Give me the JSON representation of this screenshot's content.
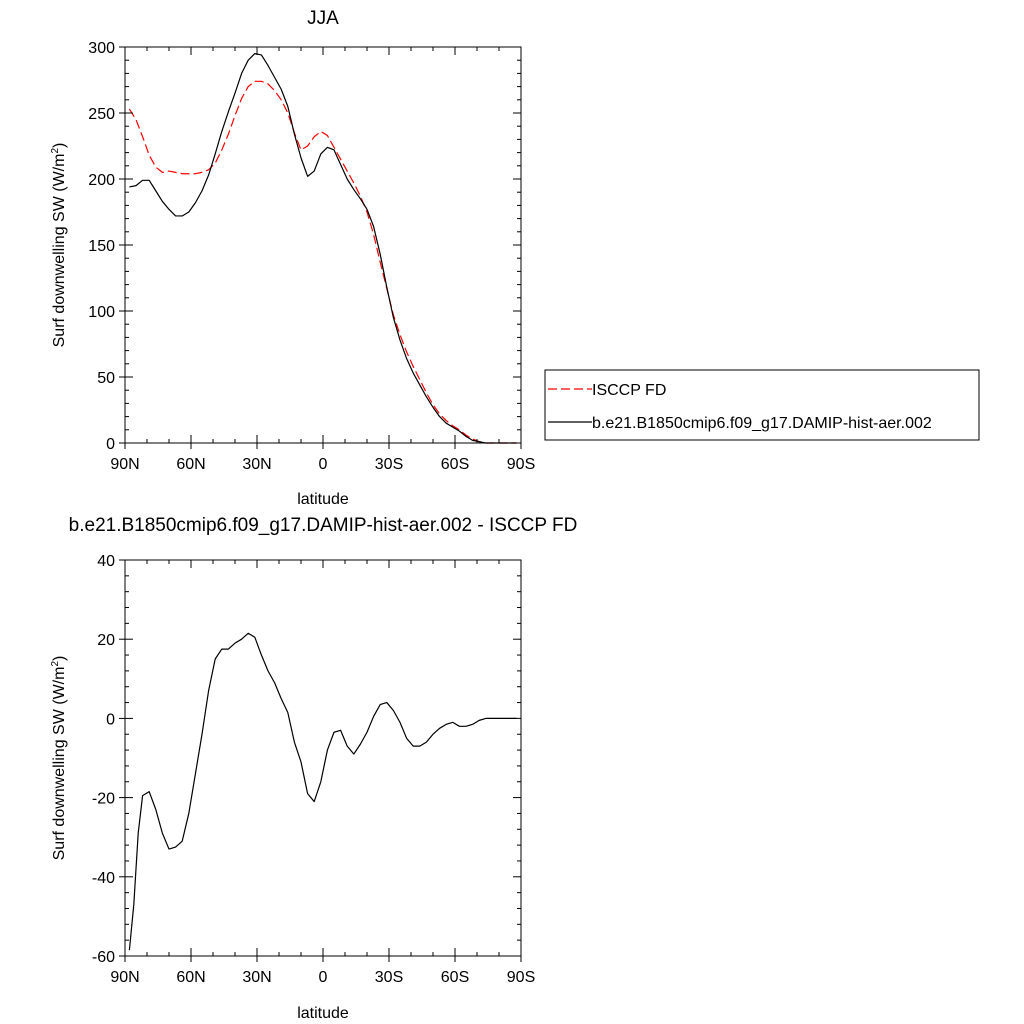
{
  "chart_data": [
    {
      "type": "line",
      "title": "JJA",
      "xlabel": "latitude",
      "ylabel_main": "Surf downwelling SW (W/m",
      "ylabel_sup": "2",
      "ylabel_close": ")",
      "xlim": [
        90,
        -90
      ],
      "ylim": [
        0,
        300
      ],
      "xticks": [
        90,
        60,
        30,
        0,
        -30,
        -60,
        -90
      ],
      "xtick_labels": [
        "90N",
        "60N",
        "30N",
        "0",
        "30S",
        "60S",
        "90S"
      ],
      "yticks": [
        0,
        50,
        100,
        150,
        200,
        250,
        300
      ],
      "ytick_labels": [
        "0",
        "50",
        "100",
        "150",
        "200",
        "250",
        "300"
      ],
      "grid": false,
      "legend_position": "right",
      "series": [
        {
          "name": "ISCCP FD",
          "color": "#ff0000",
          "style": "dashed",
          "x": [
            88,
            85,
            82,
            79,
            76,
            73,
            70,
            67,
            64,
            61,
            58,
            55,
            52,
            49,
            46,
            43,
            40,
            37,
            34,
            31,
            28,
            25,
            22,
            19,
            16,
            13,
            10,
            7,
            4,
            1,
            -2,
            -5,
            -8,
            -11,
            -14,
            -17,
            -20,
            -23,
            -26,
            -29,
            -32,
            -35,
            -38,
            -41,
            -44,
            -47,
            -50,
            -53,
            -56,
            -59,
            -62,
            -65,
            -68,
            -71,
            -74,
            -77,
            -80,
            -83,
            -86,
            -88
          ],
          "y": [
            253,
            245,
            232,
            218,
            209,
            205,
            206,
            205,
            204,
            204,
            204,
            205,
            207,
            212,
            222,
            234,
            248,
            261,
            270,
            274,
            274,
            272,
            267,
            260,
            250,
            235,
            222,
            225,
            232,
            236,
            233,
            224,
            215,
            206,
            197,
            187,
            175,
            158,
            137,
            117,
            97,
            82,
            69,
            58,
            48,
            38,
            29,
            22,
            17,
            13,
            10,
            6,
            3,
            1,
            0,
            0,
            0,
            0,
            0,
            0
          ]
        },
        {
          "name": "b.e21.B1850cmip6.f09_g17.DAMIP-hist-aer.002",
          "color": "#000000",
          "style": "solid",
          "x": [
            88,
            85,
            82,
            79,
            76,
            73,
            70,
            67,
            64,
            61,
            58,
            55,
            52,
            49,
            46,
            43,
            40,
            37,
            34,
            31,
            28,
            25,
            22,
            19,
            16,
            13,
            10,
            7,
            4,
            1,
            -2,
            -5,
            -8,
            -11,
            -14,
            -17,
            -20,
            -23,
            -26,
            -29,
            -32,
            -35,
            -38,
            -41,
            -44,
            -47,
            -50,
            -53,
            -56,
            -59,
            -62,
            -65,
            -68,
            -71,
            -74,
            -77,
            -80,
            -83,
            -86,
            -88
          ],
          "y": [
            194,
            195,
            199,
            199,
            191,
            183,
            177,
            172,
            172,
            175,
            182,
            191,
            203,
            219,
            236,
            251,
            265,
            280,
            290,
            295,
            294,
            286,
            277,
            268,
            255,
            234,
            216,
            202,
            206,
            219,
            224,
            222,
            211,
            200,
            192,
            185,
            177,
            164,
            143,
            118,
            95,
            78,
            64,
            53,
            44,
            35,
            27,
            20,
            15,
            12,
            9,
            5,
            2,
            1,
            0,
            0,
            0,
            0,
            0,
            0
          ]
        }
      ]
    },
    {
      "type": "line",
      "title": "b.e21.B1850cmip6.f09_g17.DAMIP-hist-aer.002 - ISCCP FD",
      "xlabel": "latitude",
      "ylabel_main": "Surf downwelling SW (W/m",
      "ylabel_sup": "2",
      "ylabel_close": ")",
      "xlim": [
        90,
        -90
      ],
      "ylim": [
        -60,
        40
      ],
      "xticks": [
        90,
        60,
        30,
        0,
        -30,
        -60,
        -90
      ],
      "xtick_labels": [
        "90N",
        "60N",
        "30N",
        "0",
        "30S",
        "60S",
        "90S"
      ],
      "yticks": [
        -60,
        -40,
        -20,
        0,
        20,
        40
      ],
      "ytick_labels": [
        "-60",
        "-40",
        "-20",
        "0",
        "20",
        "40"
      ],
      "grid": false,
      "series": [
        {
          "color": "#000000",
          "style": "solid",
          "x": [
            88,
            86,
            84,
            82,
            79,
            76,
            73,
            70,
            67,
            64,
            61,
            58,
            55,
            52,
            49,
            46,
            43,
            40,
            37,
            34,
            31,
            28,
            25,
            22,
            19,
            16,
            13,
            10,
            7,
            4,
            1,
            -2,
            -5,
            -8,
            -11,
            -14,
            -17,
            -20,
            -23,
            -26,
            -29,
            -32,
            -35,
            -38,
            -41,
            -44,
            -47,
            -50,
            -53,
            -56,
            -59,
            -62,
            -65,
            -68,
            -71,
            -74,
            -77,
            -80,
            -83,
            -86,
            -88
          ],
          "y": [
            -58.5,
            -47,
            -29,
            -19.5,
            -18.5,
            -23,
            -29,
            -33,
            -32.5,
            -31,
            -24,
            -14,
            -4,
            7,
            15,
            17.5,
            17.5,
            19,
            20,
            21.5,
            20.5,
            16,
            12,
            9,
            5,
            1.5,
            -6,
            -11,
            -19,
            -21,
            -16,
            -8,
            -3.5,
            -3,
            -7,
            -9,
            -6.5,
            -3.5,
            0.5,
            3.5,
            4,
            2,
            -1,
            -5,
            -7,
            -7,
            -6,
            -4,
            -2.5,
            -1.5,
            -1,
            -2,
            -2,
            -1.5,
            -0.5,
            0,
            0,
            0,
            0,
            0,
            0
          ]
        }
      ]
    }
  ]
}
